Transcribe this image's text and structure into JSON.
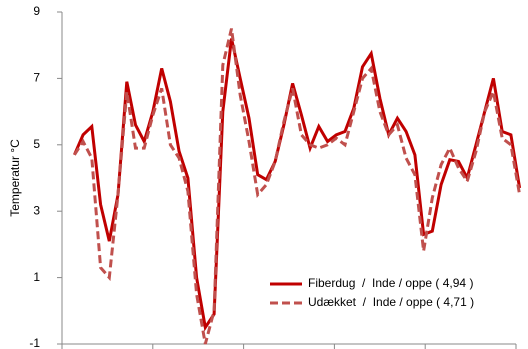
{
  "chart_data": {
    "type": "line",
    "y_label": "Temperatur °C",
    "categories": [
      null,
      null,
      null,
      null,
      null,
      null,
      null,
      null,
      null,
      null,
      null,
      null,
      null,
      null,
      null,
      null,
      null,
      null,
      null,
      null,
      null,
      null,
      null,
      null,
      null,
      null,
      null,
      null,
      null,
      null,
      null,
      null,
      null,
      null,
      null,
      null,
      null,
      null,
      null,
      null,
      null,
      null,
      null,
      null,
      null,
      null,
      null,
      null,
      null,
      null,
      null,
      null
    ],
    "series": [
      {
        "name": "Fiberdug  /  Inde / oppe ( 4,94 )",
        "color": "#c00000",
        "dashed": false,
        "values": [
          4.7,
          5.3,
          5.55,
          3.2,
          2.1,
          3.5,
          6.9,
          5.6,
          5.1,
          6.0,
          7.3,
          6.3,
          4.8,
          4.0,
          1.0,
          -0.5,
          -0.1,
          6.0,
          8.2,
          7.0,
          5.8,
          4.1,
          3.95,
          4.5,
          5.6,
          6.85,
          5.9,
          4.9,
          5.55,
          5.1,
          5.3,
          5.4,
          6.1,
          7.35,
          7.75,
          6.4,
          5.3,
          5.8,
          5.4,
          4.7,
          2.3,
          2.4,
          3.8,
          4.55,
          4.5,
          4.0,
          5.0,
          6.0,
          7.0,
          5.4,
          5.3,
          3.7
        ]
      },
      {
        "name": "Udækket  /  Inde / oppe ( 4,71 )",
        "color": "#c0504d",
        "dashed": true,
        "values": [
          4.7,
          5.1,
          4.6,
          1.3,
          1.0,
          3.5,
          6.6,
          4.9,
          4.9,
          5.9,
          6.7,
          5.0,
          4.6,
          3.6,
          0.5,
          -1.0,
          0.0,
          7.4,
          8.5,
          6.5,
          5.1,
          3.5,
          3.8,
          4.5,
          5.7,
          6.7,
          5.3,
          5.0,
          4.9,
          5.0,
          5.2,
          5.0,
          6.0,
          7.0,
          7.3,
          6.0,
          5.3,
          5.6,
          4.6,
          4.1,
          1.8,
          3.4,
          4.4,
          4.9,
          4.3,
          3.9,
          4.8,
          6.0,
          6.6,
          5.2,
          5.0,
          3.5
        ]
      }
    ],
    "ylim": [
      -1,
      9
    ],
    "yticks": [
      -1,
      1,
      3,
      5,
      7,
      9
    ],
    "grid": false,
    "legend": "lower right"
  }
}
